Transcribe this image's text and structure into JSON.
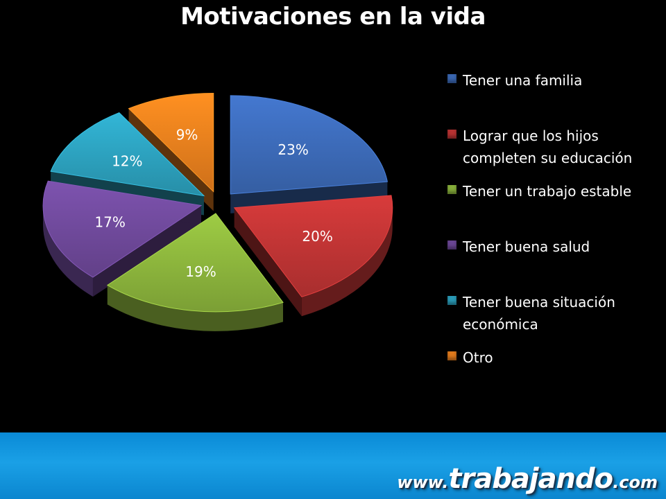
{
  "chart_data": {
    "type": "pie",
    "title": "Motivaciones en la vida",
    "legend_position": "right",
    "categories": [
      "Tener una familia",
      "Lograr que los hijos completen su educación",
      "Tener un trabajo estable",
      "Tener buena salud",
      "Tener buena situación económica",
      "Otro"
    ],
    "values": [
      23,
      20,
      19,
      17,
      12,
      9
    ],
    "data_labels": [
      "23%",
      "20%",
      "19%",
      "17%",
      "12%",
      "9%"
    ],
    "colors": [
      "#3a66b0",
      "#b73232",
      "#86ad3a",
      "#6a4694",
      "#2a9ab6",
      "#e07a1c"
    ]
  },
  "legend": [
    {
      "label": "Tener una familia"
    },
    {
      "label": "Lograr que los hijos completen su educación"
    },
    {
      "label": "Tener un trabajo estable"
    },
    {
      "label": "Tener buena salud"
    },
    {
      "label": "Tener buena situación económica"
    },
    {
      "label": "Otro"
    }
  ],
  "footer": {
    "brand_www": "www.",
    "brand_name": "trabajando",
    "brand_tld": ".com",
    "background_color": "#0a8ad6"
  }
}
